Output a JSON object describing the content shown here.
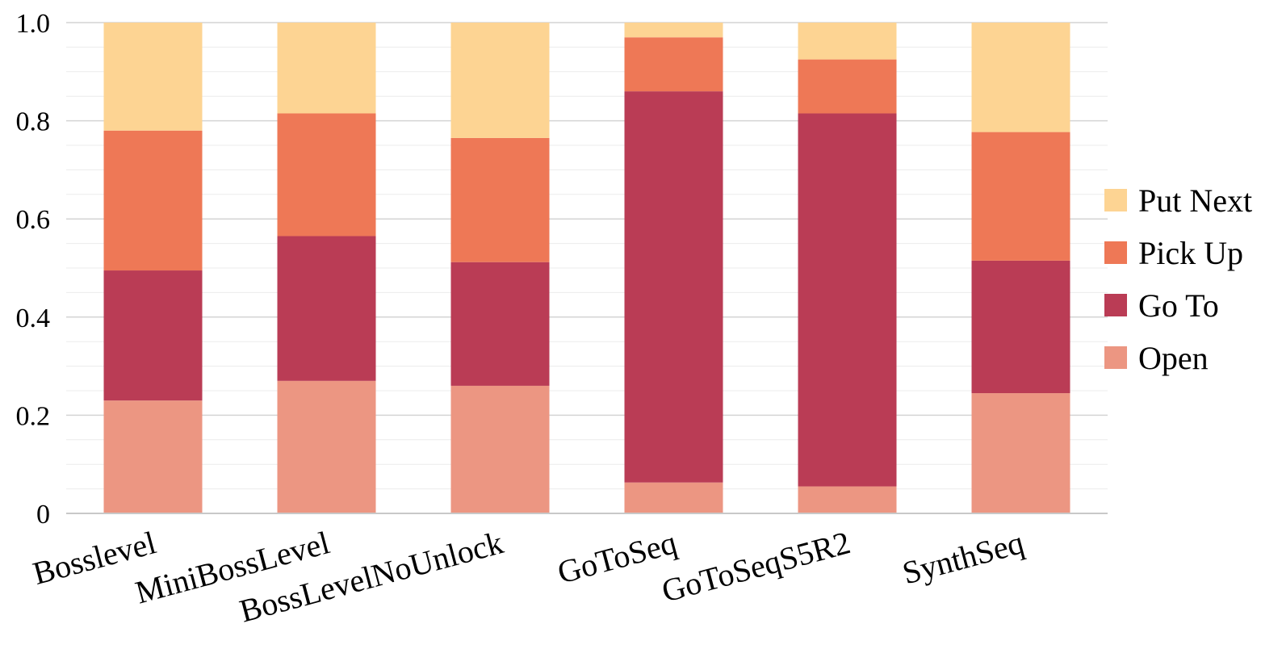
{
  "chart_data": {
    "type": "bar",
    "stacked": true,
    "title": "",
    "xlabel": "",
    "ylabel": "",
    "ylim": [
      0,
      1.0
    ],
    "yticks": [
      0,
      0.2,
      0.4,
      0.6,
      0.8,
      1.0
    ],
    "ytick_labels": [
      "0",
      "0.2",
      "0.4",
      "0.6",
      "0.8",
      "1.0"
    ],
    "grid": true,
    "legend_position": "right",
    "categories": [
      "Bosslevel",
      "MiniBossLevel",
      "BossLevelNoUnlock",
      "GoToSeq",
      "GoToSeqS5R2",
      "SynthSeq"
    ],
    "series": [
      {
        "name": "Open",
        "color": "#ec9682",
        "values": [
          0.23,
          0.27,
          0.26,
          0.063,
          0.055,
          0.245
        ]
      },
      {
        "name": "Go To",
        "color": "#ba3c55",
        "values": [
          0.265,
          0.295,
          0.252,
          0.797,
          0.76,
          0.27
        ]
      },
      {
        "name": "Pick Up",
        "color": "#ee7856",
        "values": [
          0.285,
          0.25,
          0.253,
          0.11,
          0.11,
          0.262
        ]
      },
      {
        "name": "Put Next",
        "color": "#fdd493",
        "values": [
          0.22,
          0.185,
          0.235,
          0.03,
          0.075,
          0.223
        ]
      }
    ],
    "legend_order": [
      "Put Next",
      "Pick Up",
      "Go To",
      "Open"
    ]
  }
}
